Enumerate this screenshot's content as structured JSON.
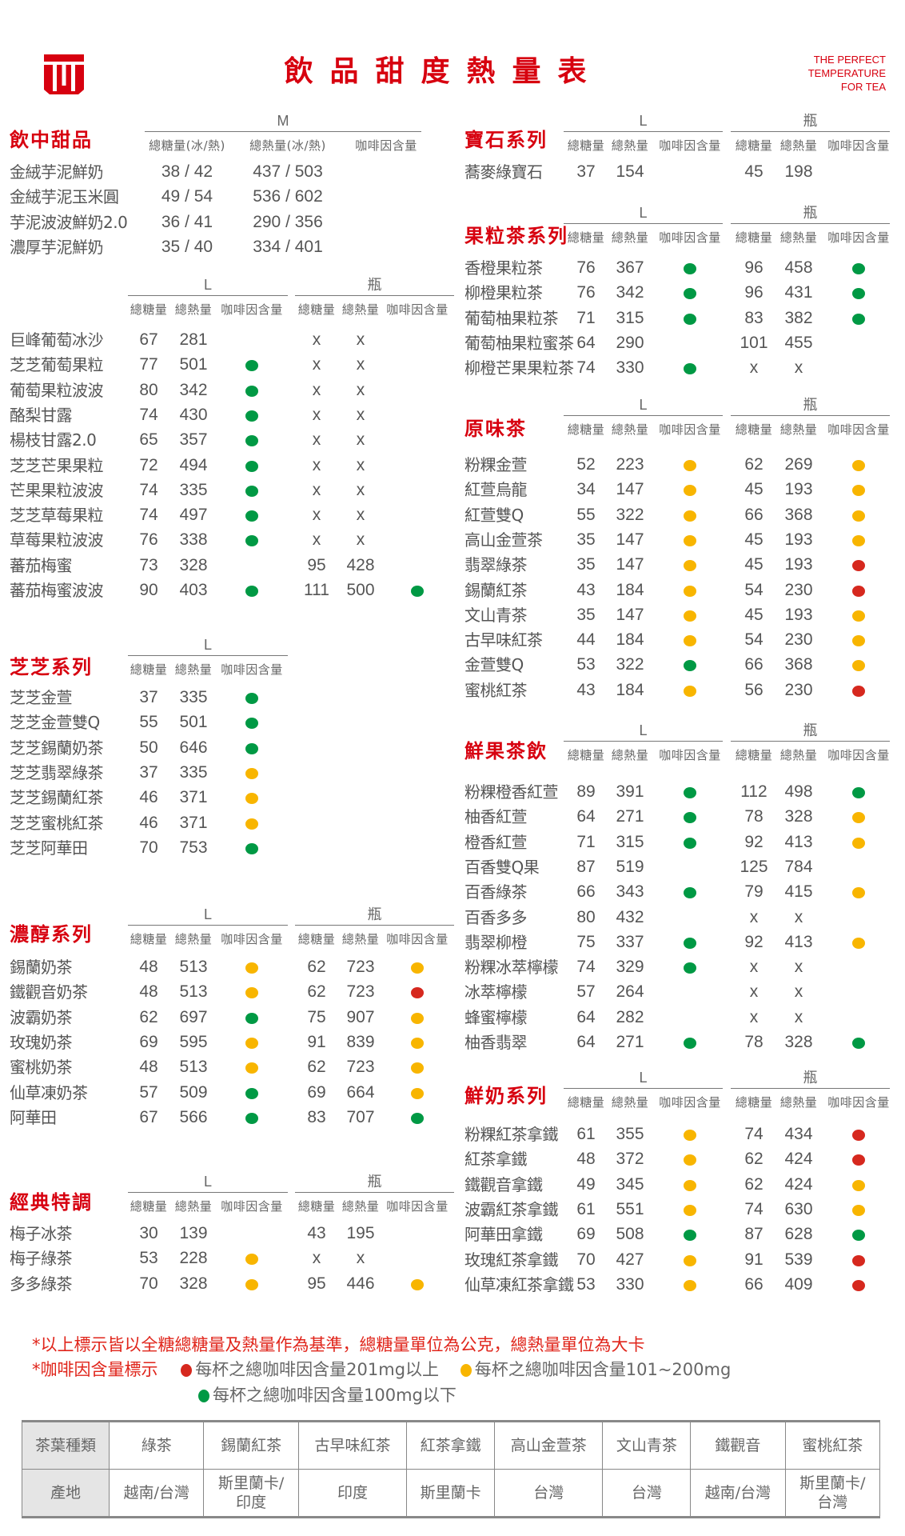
{
  "header": {
    "title": "飲品甜度熱量表",
    "tagline": [
      "THE PERFECT",
      "TEMPERATURE",
      "FOR TEA"
    ],
    "logo": "brand-logo",
    "brand_color": "#d7000f"
  },
  "caffeine_colors": {
    "green": "#009944",
    "yellow": "#f8b500",
    "red": "#d6281e"
  },
  "labels": {
    "L": "L",
    "M": "M",
    "bottle": "瓶",
    "sugar": "總糖量",
    "kcal": "總熱量",
    "caffeine": "咖啡因含量",
    "sugar_ice_hot": "總糖量(冰/熱)",
    "kcal_ice_hot": "總熱量(冰/熱)"
  },
  "sections": [
    {
      "id": "dessert",
      "title": "飲中甜品",
      "groups": [
        "M"
      ],
      "items": [
        {
          "name": "金絨芋泥鮮奶",
          "m": [
            "38 / 42",
            "437 / 503",
            ""
          ]
        },
        {
          "name": "金絨芋泥玉米圓",
          "m": [
            "49 / 54",
            "536 / 602",
            ""
          ]
        },
        {
          "name": "芋泥波波鮮奶2.0",
          "m": [
            "36 / 41",
            "290 / 356",
            ""
          ]
        },
        {
          "name": "濃厚芋泥鮮奶",
          "m": [
            "35 / 40",
            "334 / 401",
            ""
          ]
        }
      ]
    },
    {
      "id": "fruit-slush",
      "title": "",
      "groups": [
        "L",
        "bottle"
      ],
      "items": [
        {
          "name": "巨峰葡萄冰沙",
          "l": [
            "67",
            "281",
            ""
          ],
          "b": [
            "x",
            "x",
            ""
          ]
        },
        {
          "name": "芝芝葡萄果粒",
          "l": [
            "77",
            "501",
            "green"
          ],
          "b": [
            "x",
            "x",
            ""
          ]
        },
        {
          "name": "葡萄果粒波波",
          "l": [
            "80",
            "342",
            "green"
          ],
          "b": [
            "x",
            "x",
            ""
          ]
        },
        {
          "name": "酪梨甘露",
          "l": [
            "74",
            "430",
            "green"
          ],
          "b": [
            "x",
            "x",
            ""
          ]
        },
        {
          "name": "楊枝甘露2.0",
          "l": [
            "65",
            "357",
            "green"
          ],
          "b": [
            "x",
            "x",
            ""
          ]
        },
        {
          "name": "芝芝芒果果粒",
          "l": [
            "72",
            "494",
            "green"
          ],
          "b": [
            "x",
            "x",
            ""
          ]
        },
        {
          "name": "芒果果粒波波",
          "l": [
            "74",
            "335",
            "green"
          ],
          "b": [
            "x",
            "x",
            ""
          ]
        },
        {
          "name": "芝芝草莓果粒",
          "l": [
            "74",
            "497",
            "green"
          ],
          "b": [
            "x",
            "x",
            ""
          ]
        },
        {
          "name": "草莓果粒波波",
          "l": [
            "76",
            "338",
            "green"
          ],
          "b": [
            "x",
            "x",
            ""
          ]
        },
        {
          "name": "蕃茄梅蜜",
          "l": [
            "73",
            "328",
            ""
          ],
          "b": [
            "95",
            "428",
            ""
          ]
        },
        {
          "name": "蕃茄梅蜜波波",
          "l": [
            "90",
            "403",
            "green"
          ],
          "b": [
            "111",
            "500",
            "green"
          ]
        }
      ]
    },
    {
      "id": "zhizhi",
      "title": "芝芝系列",
      "groups": [
        "L"
      ],
      "items": [
        {
          "name": "芝芝金萱",
          "l": [
            "37",
            "335",
            "green"
          ]
        },
        {
          "name": "芝芝金萱雙Q",
          "l": [
            "55",
            "501",
            "green"
          ]
        },
        {
          "name": "芝芝錫蘭奶茶",
          "l": [
            "50",
            "646",
            "green"
          ]
        },
        {
          "name": "芝芝翡翠綠茶",
          "l": [
            "37",
            "335",
            "yellow"
          ]
        },
        {
          "name": "芝芝錫蘭紅茶",
          "l": [
            "46",
            "371",
            "yellow"
          ]
        },
        {
          "name": "芝芝蜜桃紅茶",
          "l": [
            "46",
            "371",
            "yellow"
          ]
        },
        {
          "name": "芝芝阿華田",
          "l": [
            "70",
            "753",
            "green"
          ]
        }
      ]
    },
    {
      "id": "rich",
      "title": "濃醇系列",
      "groups": [
        "L",
        "bottle"
      ],
      "items": [
        {
          "name": "錫蘭奶茶",
          "l": [
            "48",
            "513",
            "yellow"
          ],
          "b": [
            "62",
            "723",
            "yellow"
          ]
        },
        {
          "name": "鐵觀音奶茶",
          "l": [
            "48",
            "513",
            "yellow"
          ],
          "b": [
            "62",
            "723",
            "red"
          ]
        },
        {
          "name": "波霸奶茶",
          "l": [
            "62",
            "697",
            "green"
          ],
          "b": [
            "75",
            "907",
            "yellow"
          ]
        },
        {
          "name": "玫瑰奶茶",
          "l": [
            "69",
            "595",
            "yellow"
          ],
          "b": [
            "91",
            "839",
            "yellow"
          ]
        },
        {
          "name": "蜜桃奶茶",
          "l": [
            "48",
            "513",
            "yellow"
          ],
          "b": [
            "62",
            "723",
            "yellow"
          ]
        },
        {
          "name": "仙草凍奶茶",
          "l": [
            "57",
            "509",
            "green"
          ],
          "b": [
            "69",
            "664",
            "yellow"
          ]
        },
        {
          "name": "阿華田",
          "l": [
            "67",
            "566",
            "green"
          ],
          "b": [
            "83",
            "707",
            "green"
          ]
        }
      ]
    },
    {
      "id": "classic",
      "title": "經典特調",
      "groups": [
        "L",
        "bottle"
      ],
      "items": [
        {
          "name": "梅子冰茶",
          "l": [
            "30",
            "139",
            ""
          ],
          "b": [
            "43",
            "195",
            ""
          ]
        },
        {
          "name": "梅子綠茶",
          "l": [
            "53",
            "228",
            "yellow"
          ],
          "b": [
            "x",
            "x",
            ""
          ]
        },
        {
          "name": "多多綠茶",
          "l": [
            "70",
            "328",
            "yellow"
          ],
          "b": [
            "95",
            "446",
            "yellow"
          ]
        }
      ]
    },
    {
      "id": "gem",
      "title": "寶石系列",
      "groups": [
        "L",
        "bottle"
      ],
      "items": [
        {
          "name": "蕎麥綠寶石",
          "l": [
            "37",
            "154",
            ""
          ],
          "b": [
            "45",
            "198",
            ""
          ]
        }
      ]
    },
    {
      "id": "fruit-tea",
      "title": "果粒茶系列",
      "groups": [
        "L",
        "bottle"
      ],
      "items": [
        {
          "name": "香橙果粒茶",
          "l": [
            "76",
            "367",
            "green"
          ],
          "b": [
            "96",
            "458",
            "green"
          ]
        },
        {
          "name": "柳橙果粒茶",
          "l": [
            "76",
            "342",
            "green"
          ],
          "b": [
            "96",
            "431",
            "green"
          ]
        },
        {
          "name": "葡萄柚果粒茶",
          "l": [
            "71",
            "315",
            "green"
          ],
          "b": [
            "83",
            "382",
            "green"
          ]
        },
        {
          "name": "葡萄柚果粒蜜茶",
          "l": [
            "64",
            "290",
            ""
          ],
          "b": [
            "101",
            "455",
            ""
          ]
        },
        {
          "name": "柳橙芒果果粒茶",
          "l": [
            "74",
            "330",
            "green"
          ],
          "b": [
            "x",
            "x",
            ""
          ]
        }
      ]
    },
    {
      "id": "original",
      "title": "原味茶",
      "groups": [
        "L",
        "bottle"
      ],
      "items": [
        {
          "name": "粉粿金萱",
          "l": [
            "52",
            "223",
            "yellow"
          ],
          "b": [
            "62",
            "269",
            "yellow"
          ]
        },
        {
          "name": "紅萱烏龍",
          "l": [
            "34",
            "147",
            "yellow"
          ],
          "b": [
            "45",
            "193",
            "yellow"
          ]
        },
        {
          "name": "紅萱雙Q",
          "l": [
            "55",
            "322",
            "yellow"
          ],
          "b": [
            "66",
            "368",
            "yellow"
          ]
        },
        {
          "name": "高山金萱茶",
          "l": [
            "35",
            "147",
            "yellow"
          ],
          "b": [
            "45",
            "193",
            "yellow"
          ]
        },
        {
          "name": "翡翠綠茶",
          "l": [
            "35",
            "147",
            "yellow"
          ],
          "b": [
            "45",
            "193",
            "red"
          ]
        },
        {
          "name": "錫蘭紅茶",
          "l": [
            "43",
            "184",
            "yellow"
          ],
          "b": [
            "54",
            "230",
            "red"
          ]
        },
        {
          "name": "文山青茶",
          "l": [
            "35",
            "147",
            "yellow"
          ],
          "b": [
            "45",
            "193",
            "yellow"
          ]
        },
        {
          "name": "古早味紅茶",
          "l": [
            "44",
            "184",
            "yellow"
          ],
          "b": [
            "54",
            "230",
            "yellow"
          ]
        },
        {
          "name": "金萱雙Q",
          "l": [
            "53",
            "322",
            "green"
          ],
          "b": [
            "66",
            "368",
            "yellow"
          ]
        },
        {
          "name": "蜜桃紅茶",
          "l": [
            "43",
            "184",
            "yellow"
          ],
          "b": [
            "56",
            "230",
            "red"
          ]
        }
      ]
    },
    {
      "id": "fresh-fruit",
      "title": "鮮果茶飲",
      "groups": [
        "L",
        "bottle"
      ],
      "items": [
        {
          "name": "粉粿橙香紅萱",
          "l": [
            "89",
            "391",
            "green"
          ],
          "b": [
            "112",
            "498",
            "green"
          ]
        },
        {
          "name": "柚香紅萱",
          "l": [
            "64",
            "271",
            "green"
          ],
          "b": [
            "78",
            "328",
            "yellow"
          ]
        },
        {
          "name": "橙香紅萱",
          "l": [
            "71",
            "315",
            "green"
          ],
          "b": [
            "92",
            "413",
            "yellow"
          ]
        },
        {
          "name": "百香雙Q果",
          "l": [
            "87",
            "519",
            ""
          ],
          "b": [
            "125",
            "784",
            ""
          ]
        },
        {
          "name": "百香綠茶",
          "l": [
            "66",
            "343",
            "green"
          ],
          "b": [
            "79",
            "415",
            "yellow"
          ]
        },
        {
          "name": "百香多多",
          "l": [
            "80",
            "432",
            ""
          ],
          "b": [
            "x",
            "x",
            ""
          ]
        },
        {
          "name": "翡翠柳橙",
          "l": [
            "75",
            "337",
            "green"
          ],
          "b": [
            "92",
            "413",
            "yellow"
          ]
        },
        {
          "name": "粉粿冰萃檸檬",
          "l": [
            "74",
            "329",
            "green"
          ],
          "b": [
            "x",
            "x",
            ""
          ]
        },
        {
          "name": "冰萃檸檬",
          "l": [
            "57",
            "264",
            ""
          ],
          "b": [
            "x",
            "x",
            ""
          ]
        },
        {
          "name": "蜂蜜檸檬",
          "l": [
            "64",
            "282",
            ""
          ],
          "b": [
            "x",
            "x",
            ""
          ]
        },
        {
          "name": "柚香翡翠",
          "l": [
            "64",
            "271",
            "green"
          ],
          "b": [
            "78",
            "328",
            "green"
          ]
        }
      ]
    },
    {
      "id": "fresh-milk",
      "title": "鮮奶系列",
      "groups": [
        "L",
        "bottle"
      ],
      "items": [
        {
          "name": "粉粿紅茶拿鐵",
          "l": [
            "61",
            "355",
            "yellow"
          ],
          "b": [
            "74",
            "434",
            "red"
          ]
        },
        {
          "name": "紅茶拿鐵",
          "l": [
            "48",
            "372",
            "yellow"
          ],
          "b": [
            "62",
            "424",
            "red"
          ]
        },
        {
          "name": "鐵觀音拿鐵",
          "l": [
            "49",
            "345",
            "yellow"
          ],
          "b": [
            "62",
            "424",
            "yellow"
          ]
        },
        {
          "name": "波霸紅茶拿鐵",
          "l": [
            "61",
            "551",
            "yellow"
          ],
          "b": [
            "74",
            "630",
            "yellow"
          ]
        },
        {
          "name": "阿華田拿鐵",
          "l": [
            "69",
            "508",
            "green"
          ],
          "b": [
            "87",
            "628",
            "green"
          ]
        },
        {
          "name": "玫瑰紅茶拿鐵",
          "l": [
            "70",
            "427",
            "yellow"
          ],
          "b": [
            "91",
            "539",
            "red"
          ]
        },
        {
          "name": "仙草凍紅茶拿鐵",
          "l": [
            "53",
            "330",
            "yellow"
          ],
          "b": [
            "66",
            "409",
            "red"
          ]
        }
      ]
    }
  ],
  "notes": {
    "basis": "*以上標示皆以全糖總糖量及熱量作為基準，總糖量單位為公克，總熱量單位為大卡",
    "caffeine_title": "*咖啡因含量標示",
    "legend": [
      {
        "color": "red",
        "text": "每杯之總咖啡因含量201mg以上"
      },
      {
        "color": "yellow",
        "text": "每杯之總咖啡因含量101~200mg"
      },
      {
        "color": "green",
        "text": "每杯之總咖啡因含量100mg以下"
      }
    ]
  },
  "origin_table": {
    "row_headers": [
      "茶葉種類",
      "產地"
    ],
    "teas": [
      "綠茶",
      "錫蘭紅茶",
      "古早味紅茶",
      "紅茶拿鐵",
      "高山金萱茶",
      "文山青茶",
      "鐵觀音",
      "蜜桃紅茶"
    ],
    "origins": [
      "越南/台灣",
      "斯里蘭卡/印度",
      "印度",
      "斯里蘭卡",
      "台灣",
      "台灣",
      "越南/台灣",
      "斯里蘭卡/台灣"
    ]
  }
}
